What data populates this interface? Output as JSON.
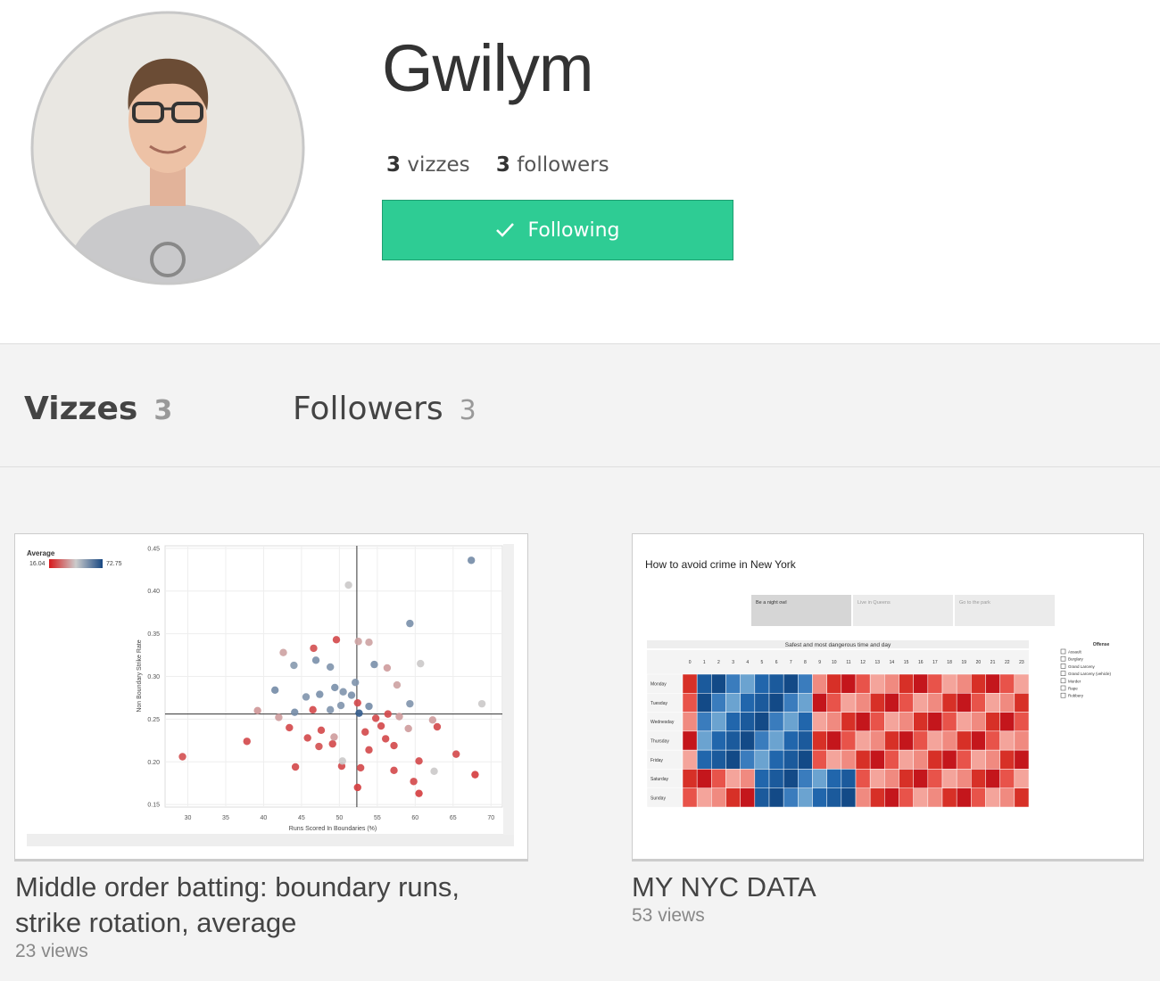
{
  "profile": {
    "name": "Gwilym",
    "vizzes_count": 3,
    "vizzes_label": "vizzes",
    "followers_count": 3,
    "followers_label": "followers",
    "follow_button": "Following"
  },
  "tabs": [
    {
      "label": "Vizzes",
      "count": 3
    },
    {
      "label": "Followers",
      "count": 3
    }
  ],
  "vizzes": [
    {
      "title": "Middle order batting: boundary runs, strike rotation, average",
      "views": 23,
      "views_label": "views",
      "thumbnail": {
        "chart_data": {
          "type": "scatter",
          "legend_title": "Average",
          "legend_min": 16.04,
          "legend_max": 72.75,
          "xlabel": "Runs Scored In Boundaries (%)",
          "ylabel": "Non Boundary Strike Rate",
          "xlim": [
            27,
            71.5
          ],
          "ylim": [
            0.147,
            0.453
          ],
          "xticks": [
            30,
            35,
            40,
            45,
            50,
            55,
            60,
            65,
            70
          ],
          "yticks": [
            0.15,
            {
              "value": 0.2,
              "label": "0.20"
            },
            0.25,
            {
              "value": 0.3,
              "label": "0.30"
            },
            0.35,
            {
              "value": 0.4,
              "label": "0.40"
            },
            0.45
          ],
          "grid": true,
          "reference_lines": {
            "x": 52.3,
            "y": 0.256
          },
          "x": [
            67.4,
            51.2,
            59.3,
            29.3,
            67.9,
            68.8,
            39.2,
            37.8,
            41.5,
            42.6,
            44.0,
            46.6,
            46.9,
            49.6,
            48.8,
            52.5,
            52.1,
            53.9,
            56.3,
            60.7,
            57.6,
            59.3,
            62.3,
            62.9,
            65.4,
            62.5,
            60.5,
            59.8,
            60.5,
            57.2,
            52.4,
            50.3,
            44.2,
            44.1,
            42.0,
            43.4,
            45.8,
            47.3,
            49.1,
            46.5,
            47.6,
            53.4,
            53.9,
            55.5,
            57.2,
            59.1,
            56.4,
            54.8,
            50.2,
            48.8,
            51.6,
            52.4,
            53.9,
            47.4,
            49.4,
            50.5,
            45.6,
            49.3,
            50.4,
            52.8,
            56.1,
            57.9,
            54.6,
            52.6
          ],
          "y": [
            0.436,
            0.407,
            0.362,
            0.206,
            0.185,
            0.268,
            0.26,
            0.224,
            0.284,
            0.328,
            0.313,
            0.333,
            0.319,
            0.343,
            0.311,
            0.341,
            0.293,
            0.34,
            0.31,
            0.315,
            0.29,
            0.268,
            0.249,
            0.241,
            0.209,
            0.189,
            0.201,
            0.177,
            0.163,
            0.19,
            0.17,
            0.195,
            0.194,
            0.258,
            0.252,
            0.24,
            0.228,
            0.218,
            0.221,
            0.261,
            0.237,
            0.235,
            0.214,
            0.242,
            0.219,
            0.239,
            0.256,
            0.251,
            0.266,
            0.261,
            0.278,
            0.269,
            0.265,
            0.279,
            0.287,
            0.282,
            0.276,
            0.229,
            0.201,
            0.193,
            0.227,
            0.253,
            0.314,
            0.257
          ],
          "average": [
            58,
            44,
            57,
            25,
            22,
            44,
            36,
            24,
            58,
            38,
            55,
            25,
            57,
            24,
            56,
            38,
            56,
            38,
            37,
            44,
            38,
            56,
            37,
            24,
            24,
            44,
            24,
            24,
            22,
            24,
            22,
            24,
            24,
            58,
            37,
            24,
            24,
            25,
            24,
            24,
            24,
            24,
            24,
            24,
            24,
            37,
            24,
            24,
            56,
            56,
            57,
            24,
            58,
            57,
            57,
            56,
            56,
            37,
            44,
            24,
            24,
            37,
            57,
            68
          ]
        }
      }
    },
    {
      "title": "MY NYC DATA",
      "views": 53,
      "views_label": "views",
      "thumbnail": {
        "title": "How to avoid crime in New York",
        "tabs": [
          "Be a night owl",
          "Live in Queens",
          "Go to the park"
        ],
        "heatmap_title": "Safest and most dangerous time and day",
        "hours": [
          0,
          1,
          2,
          3,
          4,
          5,
          6,
          7,
          8,
          9,
          10,
          11,
          12,
          13,
          14,
          15,
          16,
          17,
          18,
          19,
          20,
          21,
          22,
          23
        ],
        "days": [
          "Monday",
          "Tuesday",
          "Wednesday",
          "Thursday",
          "Friday",
          "Saturday",
          "Sunday"
        ],
        "filter_title": "Offense",
        "offenses": [
          "Assault",
          "Burglary",
          "Grand Larceny",
          "Grand Larceny (vehicle)",
          "Murder",
          "Rape",
          "Robbery"
        ]
      }
    }
  ]
}
